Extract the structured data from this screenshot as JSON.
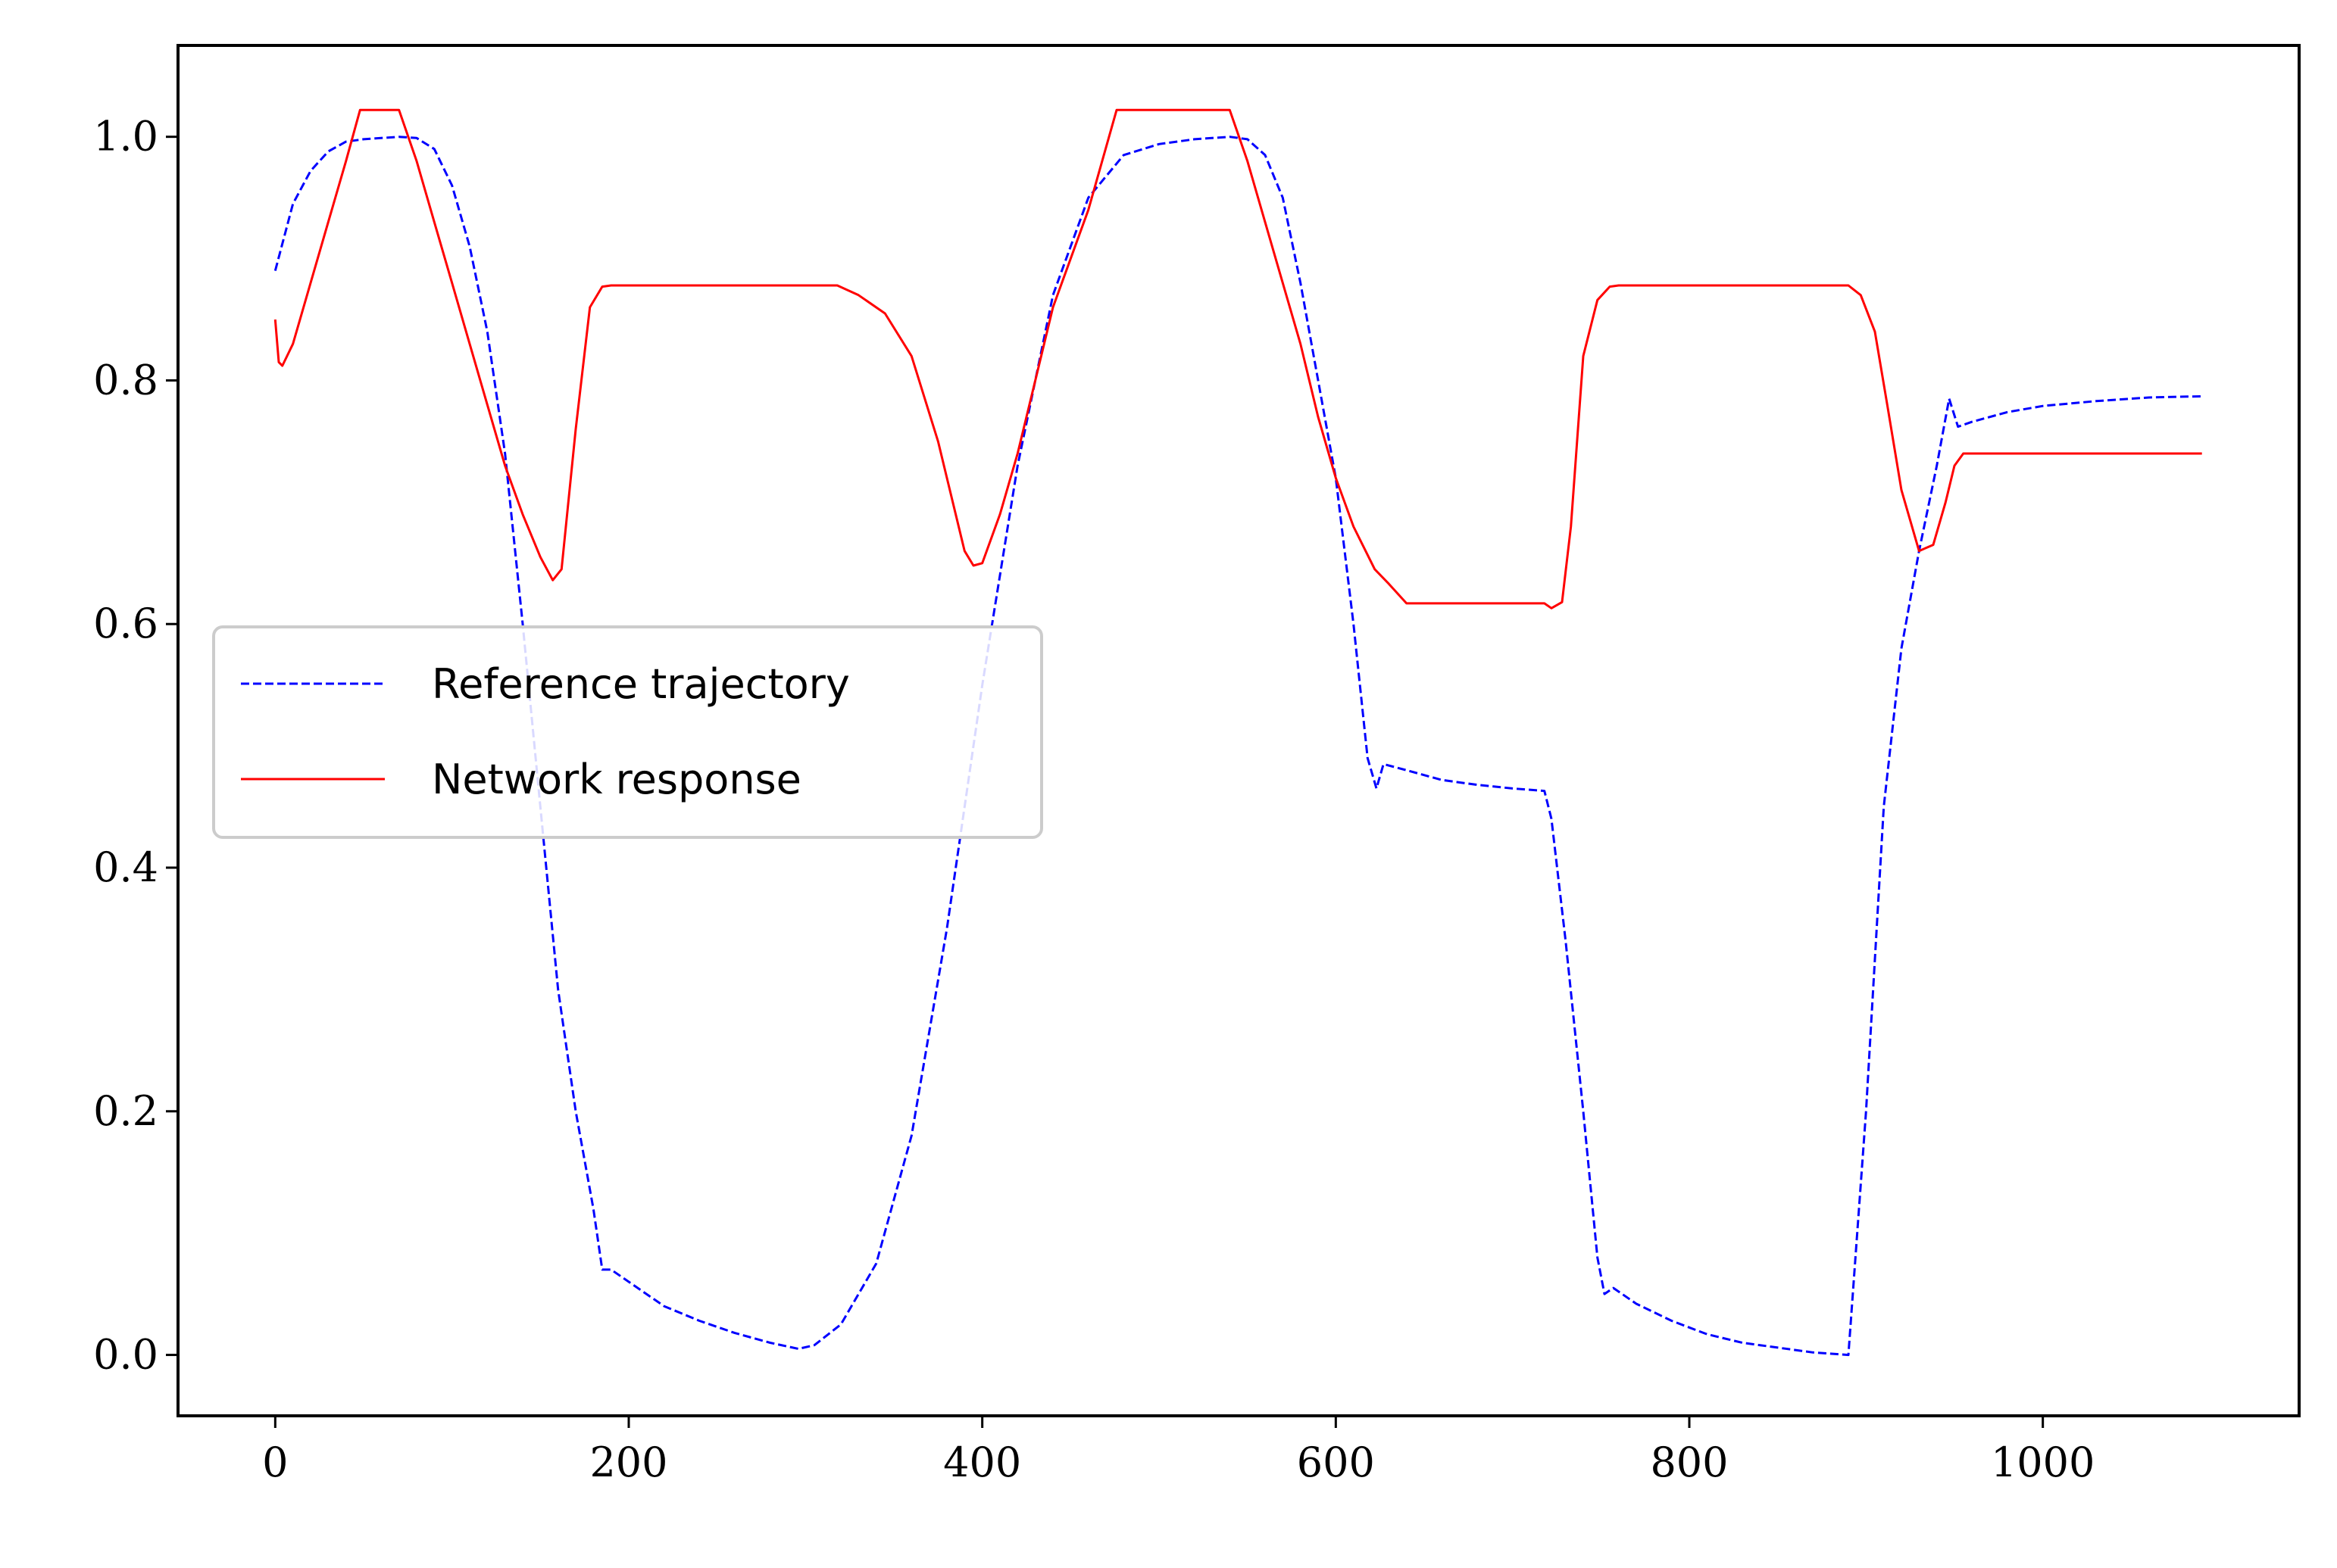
{
  "chart_data": {
    "type": "line",
    "title": "",
    "xlabel": "",
    "ylabel": "",
    "xlim": [
      -55,
      1145
    ],
    "ylim": [
      -0.05,
      1.075
    ],
    "x_ticks": [
      0,
      200,
      400,
      600,
      800,
      1000
    ],
    "x_tick_labels": [
      "0",
      "200",
      "400",
      "600",
      "800",
      "1000"
    ],
    "y_ticks": [
      0.0,
      0.2,
      0.4,
      0.6,
      0.8,
      1.0
    ],
    "y_tick_labels": [
      "0.0",
      "0.2",
      "0.4",
      "0.6",
      "0.8",
      "1.0"
    ],
    "grid": false,
    "legend_position": "center-left",
    "series": [
      {
        "name": "Reference trajectory",
        "color": "#0000ff",
        "style": "dashed",
        "points": [
          [
            0,
            0.89
          ],
          [
            10,
            0.945
          ],
          [
            20,
            0.972
          ],
          [
            30,
            0.988
          ],
          [
            40,
            0.996
          ],
          [
            50,
            0.998
          ],
          [
            60,
            0.999
          ],
          [
            70,
            1.0
          ],
          [
            80,
            0.999
          ],
          [
            90,
            0.99
          ],
          [
            100,
            0.96
          ],
          [
            110,
            0.91
          ],
          [
            120,
            0.84
          ],
          [
            130,
            0.74
          ],
          [
            140,
            0.6
          ],
          [
            150,
            0.45
          ],
          [
            160,
            0.3
          ],
          [
            170,
            0.2
          ],
          [
            180,
            0.12
          ],
          [
            185,
            0.07
          ],
          [
            190,
            0.07
          ],
          [
            200,
            0.06
          ],
          [
            220,
            0.04
          ],
          [
            240,
            0.028
          ],
          [
            260,
            0.018
          ],
          [
            280,
            0.01
          ],
          [
            296,
            0.005
          ],
          [
            305,
            0.008
          ],
          [
            320,
            0.025
          ],
          [
            340,
            0.075
          ],
          [
            360,
            0.18
          ],
          [
            380,
            0.35
          ],
          [
            400,
            0.55
          ],
          [
            420,
            0.73
          ],
          [
            440,
            0.87
          ],
          [
            460,
            0.95
          ],
          [
            480,
            0.985
          ],
          [
            500,
            0.994
          ],
          [
            520,
            0.998
          ],
          [
            540,
            1.0
          ],
          [
            550,
            0.998
          ],
          [
            560,
            0.985
          ],
          [
            570,
            0.95
          ],
          [
            580,
            0.88
          ],
          [
            590,
            0.8
          ],
          [
            600,
            0.72
          ],
          [
            610,
            0.6
          ],
          [
            618,
            0.49
          ],
          [
            623,
            0.465
          ],
          [
            627,
            0.485
          ],
          [
            640,
            0.48
          ],
          [
            660,
            0.472
          ],
          [
            680,
            0.468
          ],
          [
            700,
            0.465
          ],
          [
            718,
            0.463
          ],
          [
            722,
            0.44
          ],
          [
            730,
            0.34
          ],
          [
            740,
            0.2
          ],
          [
            748,
            0.08
          ],
          [
            752,
            0.05
          ],
          [
            757,
            0.055
          ],
          [
            770,
            0.042
          ],
          [
            790,
            0.028
          ],
          [
            810,
            0.017
          ],
          [
            830,
            0.01
          ],
          [
            850,
            0.006
          ],
          [
            870,
            0.002
          ],
          [
            890,
            0.0
          ],
          [
            900,
            0.2
          ],
          [
            910,
            0.45
          ],
          [
            920,
            0.58
          ],
          [
            930,
            0.66
          ],
          [
            940,
            0.73
          ],
          [
            947,
            0.785
          ],
          [
            952,
            0.762
          ],
          [
            960,
            0.766
          ],
          [
            980,
            0.774
          ],
          [
            1000,
            0.779
          ],
          [
            1030,
            0.783
          ],
          [
            1060,
            0.786
          ],
          [
            1090,
            0.787
          ]
        ]
      },
      {
        "name": "Network response",
        "color": "#ff0000",
        "style": "solid",
        "points": [
          [
            0,
            0.85
          ],
          [
            2,
            0.815
          ],
          [
            4,
            0.812
          ],
          [
            10,
            0.83
          ],
          [
            20,
            0.88
          ],
          [
            30,
            0.93
          ],
          [
            40,
            0.98
          ],
          [
            48,
            1.022
          ],
          [
            70,
            1.022
          ],
          [
            80,
            0.98
          ],
          [
            90,
            0.93
          ],
          [
            100,
            0.88
          ],
          [
            110,
            0.83
          ],
          [
            120,
            0.78
          ],
          [
            130,
            0.73
          ],
          [
            140,
            0.69
          ],
          [
            150,
            0.655
          ],
          [
            157,
            0.636
          ],
          [
            162,
            0.645
          ],
          [
            170,
            0.76
          ],
          [
            178,
            0.86
          ],
          [
            185,
            0.877
          ],
          [
            190,
            0.878
          ],
          [
            250,
            0.878
          ],
          [
            318,
            0.878
          ],
          [
            330,
            0.87
          ],
          [
            345,
            0.855
          ],
          [
            360,
            0.82
          ],
          [
            375,
            0.75
          ],
          [
            390,
            0.66
          ],
          [
            395,
            0.648
          ],
          [
            400,
            0.65
          ],
          [
            410,
            0.69
          ],
          [
            420,
            0.74
          ],
          [
            430,
            0.8
          ],
          [
            440,
            0.86
          ],
          [
            460,
            0.94
          ],
          [
            476,
            1.022
          ],
          [
            540,
            1.022
          ],
          [
            550,
            0.98
          ],
          [
            560,
            0.93
          ],
          [
            570,
            0.88
          ],
          [
            580,
            0.83
          ],
          [
            590,
            0.77
          ],
          [
            600,
            0.72
          ],
          [
            610,
            0.68
          ],
          [
            622,
            0.645
          ],
          [
            630,
            0.633
          ],
          [
            640,
            0.617
          ],
          [
            660,
            0.617
          ],
          [
            690,
            0.617
          ],
          [
            718,
            0.617
          ],
          [
            722,
            0.613
          ],
          [
            728,
            0.618
          ],
          [
            733,
            0.68
          ],
          [
            740,
            0.82
          ],
          [
            748,
            0.866
          ],
          [
            755,
            0.877
          ],
          [
            760,
            0.878
          ],
          [
            800,
            0.878
          ],
          [
            850,
            0.878
          ],
          [
            890,
            0.878
          ],
          [
            897,
            0.87
          ],
          [
            905,
            0.84
          ],
          [
            912,
            0.78
          ],
          [
            920,
            0.71
          ],
          [
            930,
            0.66
          ],
          [
            938,
            0.665
          ],
          [
            945,
            0.7
          ],
          [
            950,
            0.73
          ],
          [
            955,
            0.74
          ],
          [
            1000,
            0.74
          ],
          [
            1050,
            0.74
          ],
          [
            1090,
            0.74
          ]
        ]
      }
    ]
  }
}
